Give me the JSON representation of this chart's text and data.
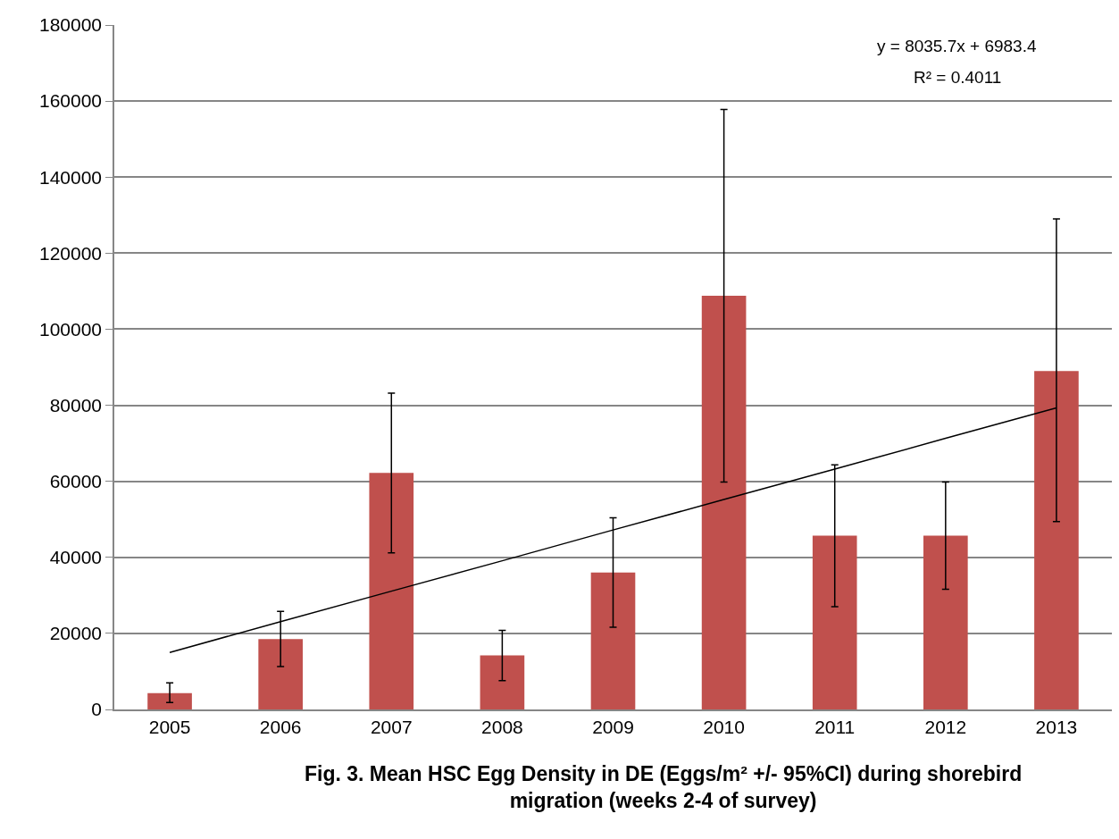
{
  "chart_data": {
    "type": "bar",
    "title": "Fig. 3. Mean HSC Egg Density in DE (Eggs/m² +/- 95%CI) during shorebird migration (weeks 2-4 of survey)",
    "categories": [
      "2005",
      "2006",
      "2007",
      "2008",
      "2009",
      "2010",
      "2011",
      "2012",
      "2013"
    ],
    "series": [
      {
        "color": "#c0504d",
        "values": [
          4300,
          18500,
          62200,
          14200,
          36000,
          108800,
          45700,
          45700,
          89000
        ],
        "errors": [
          [
            1800,
            7000
          ],
          [
            11300,
            25800
          ],
          [
            41200,
            83200
          ],
          [
            7600,
            20800
          ],
          [
            21600,
            50400
          ],
          [
            59800,
            157800
          ],
          [
            27000,
            64300
          ],
          [
            31600,
            59800
          ],
          [
            49400,
            129000
          ]
        ]
      },
      {
        "type": "line",
        "color": "#000000",
        "values": [
          15000,
          23100,
          31100,
          39100,
          47200,
          55200,
          63200,
          71300,
          79300
        ]
      }
    ],
    "annotations": [
      "y = 8035.7x + 6983.4",
      "R² = 0.4011"
    ],
    "ylim": [
      0,
      180000
    ],
    "yticks": [
      0,
      20000,
      40000,
      60000,
      80000,
      100000,
      120000,
      140000,
      160000,
      180000
    ],
    "grid": "y"
  }
}
